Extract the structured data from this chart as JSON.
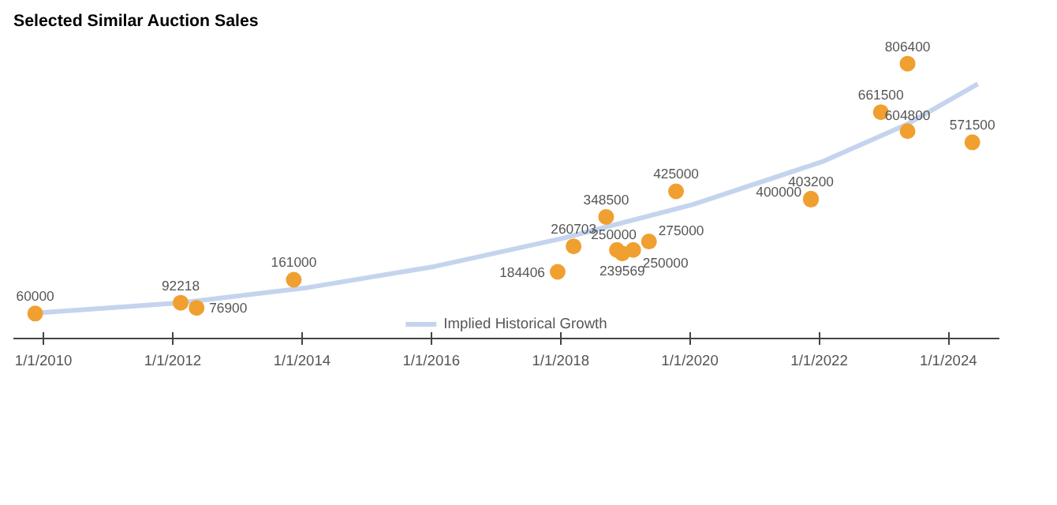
{
  "chart_data": {
    "type": "scatter",
    "title": "Selected Similar Auction Sales",
    "xlim": [
      "2009-07",
      "2024-10"
    ],
    "xticks": [
      {
        "value": "2010-01-01",
        "label": "1/1/2010"
      },
      {
        "value": "2012-01-01",
        "label": "1/1/2012"
      },
      {
        "value": "2014-01-01",
        "label": "1/1/2014"
      },
      {
        "value": "2016-01-01",
        "label": "1/1/2016"
      },
      {
        "value": "2018-01-01",
        "label": "1/1/2018"
      },
      {
        "value": "2020-01-01",
        "label": "1/1/2020"
      },
      {
        "value": "2022-01-01",
        "label": "1/1/2022"
      },
      {
        "value": "2024-01-01",
        "label": "1/1/2024"
      }
    ],
    "tick_labels": "x",
    "legend": "bottom",
    "series": [
      {
        "color": "#f0a030",
        "marker": "circle",
        "x": [
          "2009-11",
          "2012-02",
          "2012-05",
          "2013-11",
          "2017-12",
          "2018-03",
          "2018-09",
          "2018-11",
          "2018-12",
          "2019-02",
          "2019-05",
          "2019-10",
          "2021-11",
          "2021-11",
          "2022-12",
          "2023-05",
          "2023-05",
          "2024-05"
        ],
        "values": [
          60000,
          92218,
          76900,
          161000,
          184406,
          260703,
          348500,
          250000,
          239569,
          250000,
          275000,
          425000,
          400000,
          403200,
          661500,
          806400,
          604800,
          571500
        ],
        "value_labels": [
          "60000",
          "92218",
          "76900",
          "161000",
          "184406",
          "260703",
          "348500",
          "250000",
          "239569",
          "250000",
          "275000",
          "425000",
          "400000",
          "403200",
          "661500",
          "806400",
          "604800",
          "571500"
        ]
      },
      {
        "type": "line",
        "name": "Implied Historical Growth",
        "color": "#c5d4ee",
        "x": [
          "2009-10",
          "2012-02",
          "2014-01",
          "2016-01",
          "2018-01",
          "2020-01",
          "2022-01",
          "2023-05",
          "2024-06"
        ],
        "values": [
          60000,
          92000,
          136000,
          200000,
          285000,
          385000,
          513000,
          626000,
          746000
        ]
      }
    ]
  }
}
